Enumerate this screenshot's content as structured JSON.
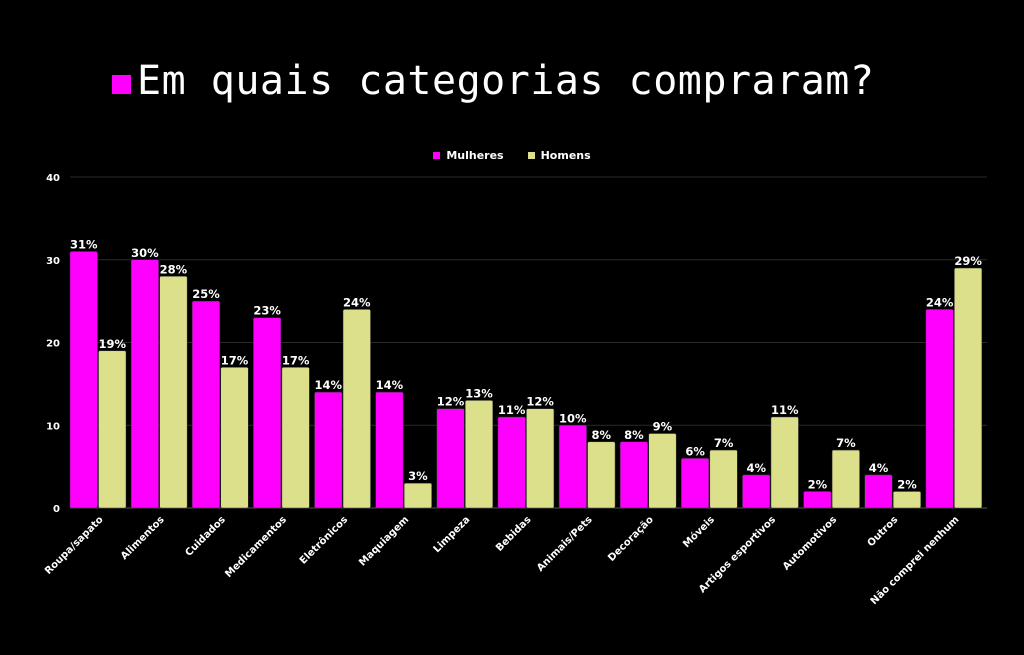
{
  "title": "Em quais categorias compraram?",
  "colors": {
    "background": "#000000",
    "mulheres": "#ff00ff",
    "homens": "#dde08a",
    "grid": "#2a2a2a",
    "text": "#ffffff"
  },
  "legend": [
    {
      "label": "Mulheres",
      "color": "#ff00ff"
    },
    {
      "label": "Homens",
      "color": "#dde08a"
    }
  ],
  "chart_data": {
    "type": "bar",
    "title": "Em quais categorias compraram?",
    "xlabel": "",
    "ylabel": "",
    "ylim": [
      0,
      40
    ],
    "yticks": [
      0,
      10,
      20,
      30,
      40
    ],
    "grid": true,
    "legend_position": "top",
    "categories": [
      "Roupa/sapato",
      "Alimentos",
      "Cuidados",
      "Medicamentos",
      "Eletrônicos",
      "Maquiagem",
      "Limpeza",
      "Bebidas",
      "Animais/Pets",
      "Decoração",
      "Móveis",
      "Artigos esportivos",
      "Automotivos",
      "Outros",
      "Não comprei nenhum"
    ],
    "series": [
      {
        "name": "Mulheres",
        "color": "#ff00ff",
        "values": [
          31,
          30,
          25,
          23,
          14,
          14,
          12,
          11,
          10,
          8,
          6,
          4,
          2,
          4,
          24
        ]
      },
      {
        "name": "Homens",
        "color": "#dde08a",
        "values": [
          19,
          28,
          17,
          17,
          24,
          3,
          13,
          12,
          8,
          9,
          7,
          11,
          7,
          2,
          29
        ]
      }
    ],
    "value_label_suffix": "%"
  }
}
